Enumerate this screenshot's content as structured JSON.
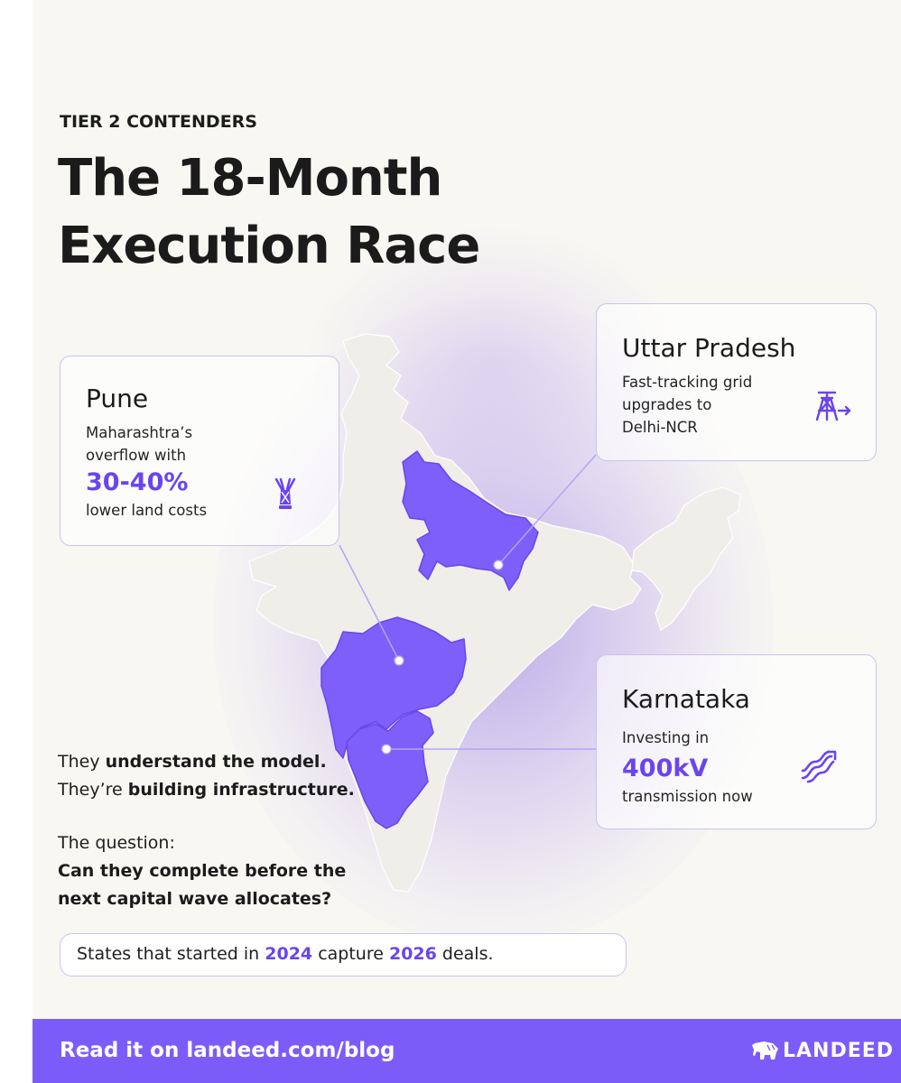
{
  "header": {
    "eyebrow": "TIER 2 CONTENDERS",
    "title_line1": "The 18-Month",
    "title_line2": "Execution Race"
  },
  "cards": {
    "pune": {
      "title": "Pune",
      "line1": "Maharashtra’s",
      "line2": "overflow with",
      "stat": "30-40%",
      "line3": "lower land costs",
      "icon": "data-tower-icon"
    },
    "uttar_pradesh": {
      "title": "Uttar Pradesh",
      "line1": "Fast-tracking grid",
      "line2": "upgrades to",
      "line3": "Delhi-NCR",
      "icon": "transmission-tower-arrow-icon"
    },
    "karnataka": {
      "title": "Karnataka",
      "line1": "Investing in",
      "stat": "400kV",
      "line2": "transmission now",
      "icon": "power-lines-arrow-icon"
    }
  },
  "body": {
    "p1_a": "They ",
    "p1_b": "understand the model.",
    "p2_a": "They’re ",
    "p2_b": "building infrastructure.",
    "question_label": "The question:",
    "question_l1": "Can they complete before the",
    "question_l2": "next capital wave allocates?"
  },
  "callout": {
    "part1": "States that started in ",
    "year1": "2024",
    "part2": " capture ",
    "year2": "2026",
    "part3": " deals."
  },
  "footer": {
    "cta": "Read it on landeed.com/blog",
    "brand": "LANDEED",
    "brand_icon": "elephant-logo-icon"
  },
  "colors": {
    "accent": "#7c5cf8",
    "highlight_text": "#6a45ee",
    "map_land": "#efeee9",
    "map_highlight": "#7d5ff9",
    "background": "#f8f7f2"
  }
}
